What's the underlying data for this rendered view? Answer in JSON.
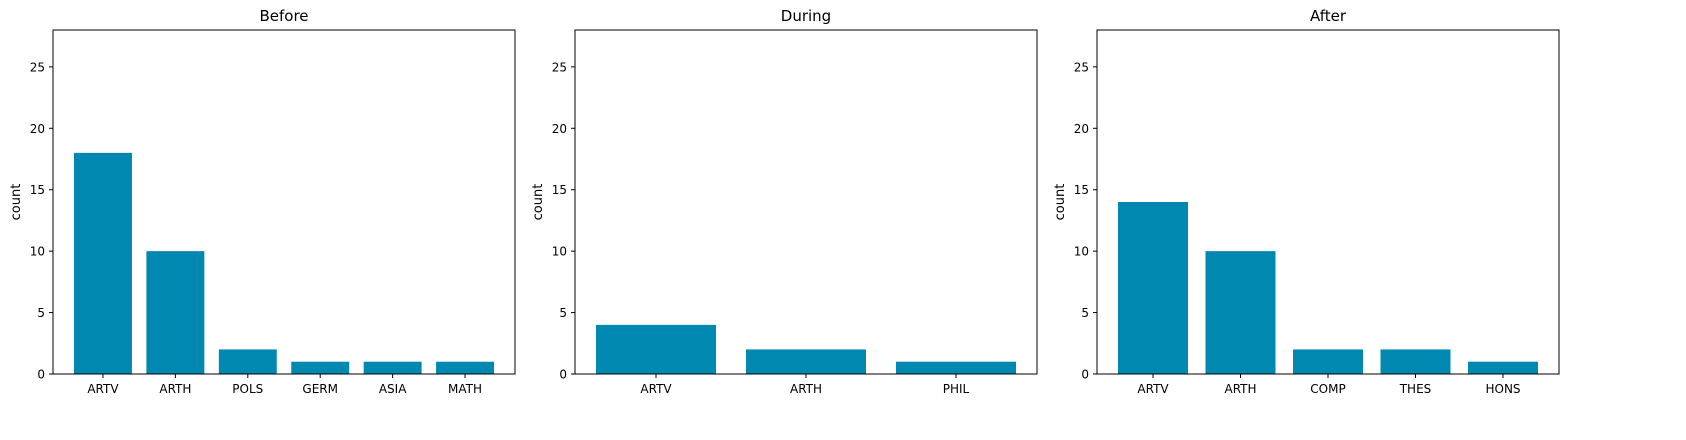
{
  "style": {
    "bar_color": "#0088b0",
    "axis_color": "#000000",
    "background": "#ffffff"
  },
  "chart_data": [
    {
      "type": "bar",
      "title": "Before",
      "xlabel": "",
      "ylabel": "count",
      "ylim": [
        0,
        28
      ],
      "yticks": [
        0,
        5,
        10,
        15,
        20,
        25
      ],
      "grid": false,
      "categories": [
        "ARTV",
        "ARTH",
        "POLS",
        "GERM",
        "ASIA",
        "MATH"
      ],
      "values": [
        18,
        10,
        2,
        1,
        1,
        1
      ]
    },
    {
      "type": "bar",
      "title": "During",
      "xlabel": "",
      "ylabel": "count",
      "ylim": [
        0,
        28
      ],
      "yticks": [
        0,
        5,
        10,
        15,
        20,
        25
      ],
      "grid": false,
      "categories": [
        "ARTV",
        "ARTH",
        "PHIL"
      ],
      "values": [
        4,
        2,
        1
      ]
    },
    {
      "type": "bar",
      "title": "After",
      "xlabel": "",
      "ylabel": "count",
      "ylim": [
        0,
        28
      ],
      "yticks": [
        0,
        5,
        10,
        15,
        20,
        25
      ],
      "grid": false,
      "categories": [
        "ARTV",
        "ARTH",
        "COMP",
        "THES",
        "HONS"
      ],
      "values": [
        14,
        10,
        2,
        2,
        1
      ]
    }
  ]
}
